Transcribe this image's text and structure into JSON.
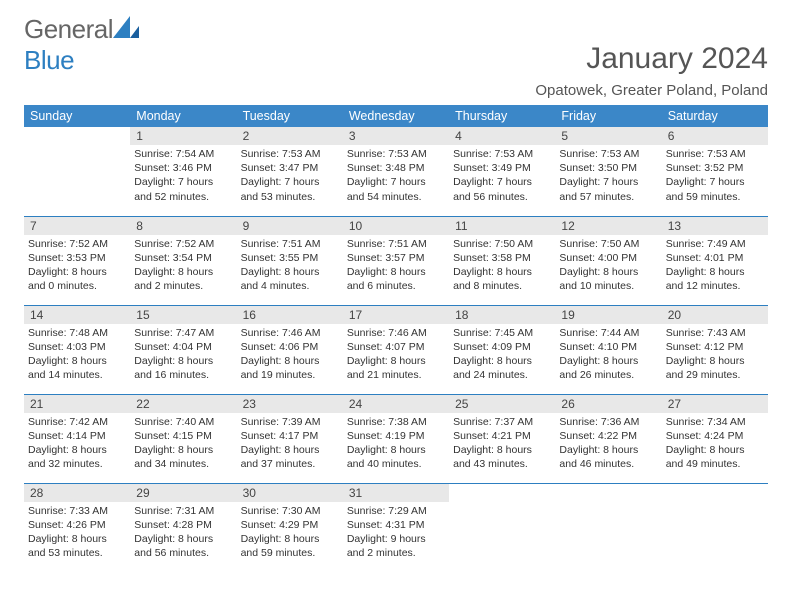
{
  "logo": {
    "general": "General",
    "blue": "Blue"
  },
  "title": "January 2024",
  "location": "Opatowek, Greater Poland, Poland",
  "colors": {
    "header_bg": "#3b87c8",
    "header_text": "#ffffff",
    "daynum_bg": "#e8e8e8",
    "sep": "#2d7fc1",
    "text": "#333333",
    "title": "#555555"
  },
  "dayHeaders": [
    "Sunday",
    "Monday",
    "Tuesday",
    "Wednesday",
    "Thursday",
    "Friday",
    "Saturday"
  ],
  "weeks": [
    [
      {
        "n": "",
        "sr": "",
        "ss": "",
        "dl": ""
      },
      {
        "n": "1",
        "sr": "Sunrise: 7:54 AM",
        "ss": "Sunset: 3:46 PM",
        "dl": "Daylight: 7 hours and 52 minutes."
      },
      {
        "n": "2",
        "sr": "Sunrise: 7:53 AM",
        "ss": "Sunset: 3:47 PM",
        "dl": "Daylight: 7 hours and 53 minutes."
      },
      {
        "n": "3",
        "sr": "Sunrise: 7:53 AM",
        "ss": "Sunset: 3:48 PM",
        "dl": "Daylight: 7 hours and 54 minutes."
      },
      {
        "n": "4",
        "sr": "Sunrise: 7:53 AM",
        "ss": "Sunset: 3:49 PM",
        "dl": "Daylight: 7 hours and 56 minutes."
      },
      {
        "n": "5",
        "sr": "Sunrise: 7:53 AM",
        "ss": "Sunset: 3:50 PM",
        "dl": "Daylight: 7 hours and 57 minutes."
      },
      {
        "n": "6",
        "sr": "Sunrise: 7:53 AM",
        "ss": "Sunset: 3:52 PM",
        "dl": "Daylight: 7 hours and 59 minutes."
      }
    ],
    [
      {
        "n": "7",
        "sr": "Sunrise: 7:52 AM",
        "ss": "Sunset: 3:53 PM",
        "dl": "Daylight: 8 hours and 0 minutes."
      },
      {
        "n": "8",
        "sr": "Sunrise: 7:52 AM",
        "ss": "Sunset: 3:54 PM",
        "dl": "Daylight: 8 hours and 2 minutes."
      },
      {
        "n": "9",
        "sr": "Sunrise: 7:51 AM",
        "ss": "Sunset: 3:55 PM",
        "dl": "Daylight: 8 hours and 4 minutes."
      },
      {
        "n": "10",
        "sr": "Sunrise: 7:51 AM",
        "ss": "Sunset: 3:57 PM",
        "dl": "Daylight: 8 hours and 6 minutes."
      },
      {
        "n": "11",
        "sr": "Sunrise: 7:50 AM",
        "ss": "Sunset: 3:58 PM",
        "dl": "Daylight: 8 hours and 8 minutes."
      },
      {
        "n": "12",
        "sr": "Sunrise: 7:50 AM",
        "ss": "Sunset: 4:00 PM",
        "dl": "Daylight: 8 hours and 10 minutes."
      },
      {
        "n": "13",
        "sr": "Sunrise: 7:49 AM",
        "ss": "Sunset: 4:01 PM",
        "dl": "Daylight: 8 hours and 12 minutes."
      }
    ],
    [
      {
        "n": "14",
        "sr": "Sunrise: 7:48 AM",
        "ss": "Sunset: 4:03 PM",
        "dl": "Daylight: 8 hours and 14 minutes."
      },
      {
        "n": "15",
        "sr": "Sunrise: 7:47 AM",
        "ss": "Sunset: 4:04 PM",
        "dl": "Daylight: 8 hours and 16 minutes."
      },
      {
        "n": "16",
        "sr": "Sunrise: 7:46 AM",
        "ss": "Sunset: 4:06 PM",
        "dl": "Daylight: 8 hours and 19 minutes."
      },
      {
        "n": "17",
        "sr": "Sunrise: 7:46 AM",
        "ss": "Sunset: 4:07 PM",
        "dl": "Daylight: 8 hours and 21 minutes."
      },
      {
        "n": "18",
        "sr": "Sunrise: 7:45 AM",
        "ss": "Sunset: 4:09 PM",
        "dl": "Daylight: 8 hours and 24 minutes."
      },
      {
        "n": "19",
        "sr": "Sunrise: 7:44 AM",
        "ss": "Sunset: 4:10 PM",
        "dl": "Daylight: 8 hours and 26 minutes."
      },
      {
        "n": "20",
        "sr": "Sunrise: 7:43 AM",
        "ss": "Sunset: 4:12 PM",
        "dl": "Daylight: 8 hours and 29 minutes."
      }
    ],
    [
      {
        "n": "21",
        "sr": "Sunrise: 7:42 AM",
        "ss": "Sunset: 4:14 PM",
        "dl": "Daylight: 8 hours and 32 minutes."
      },
      {
        "n": "22",
        "sr": "Sunrise: 7:40 AM",
        "ss": "Sunset: 4:15 PM",
        "dl": "Daylight: 8 hours and 34 minutes."
      },
      {
        "n": "23",
        "sr": "Sunrise: 7:39 AM",
        "ss": "Sunset: 4:17 PM",
        "dl": "Daylight: 8 hours and 37 minutes."
      },
      {
        "n": "24",
        "sr": "Sunrise: 7:38 AM",
        "ss": "Sunset: 4:19 PM",
        "dl": "Daylight: 8 hours and 40 minutes."
      },
      {
        "n": "25",
        "sr": "Sunrise: 7:37 AM",
        "ss": "Sunset: 4:21 PM",
        "dl": "Daylight: 8 hours and 43 minutes."
      },
      {
        "n": "26",
        "sr": "Sunrise: 7:36 AM",
        "ss": "Sunset: 4:22 PM",
        "dl": "Daylight: 8 hours and 46 minutes."
      },
      {
        "n": "27",
        "sr": "Sunrise: 7:34 AM",
        "ss": "Sunset: 4:24 PM",
        "dl": "Daylight: 8 hours and 49 minutes."
      }
    ],
    [
      {
        "n": "28",
        "sr": "Sunrise: 7:33 AM",
        "ss": "Sunset: 4:26 PM",
        "dl": "Daylight: 8 hours and 53 minutes."
      },
      {
        "n": "29",
        "sr": "Sunrise: 7:31 AM",
        "ss": "Sunset: 4:28 PM",
        "dl": "Daylight: 8 hours and 56 minutes."
      },
      {
        "n": "30",
        "sr": "Sunrise: 7:30 AM",
        "ss": "Sunset: 4:29 PM",
        "dl": "Daylight: 8 hours and 59 minutes."
      },
      {
        "n": "31",
        "sr": "Sunrise: 7:29 AM",
        "ss": "Sunset: 4:31 PM",
        "dl": "Daylight: 9 hours and 2 minutes."
      },
      {
        "n": "",
        "sr": "",
        "ss": "",
        "dl": ""
      },
      {
        "n": "",
        "sr": "",
        "ss": "",
        "dl": ""
      },
      {
        "n": "",
        "sr": "",
        "ss": "",
        "dl": ""
      }
    ]
  ]
}
